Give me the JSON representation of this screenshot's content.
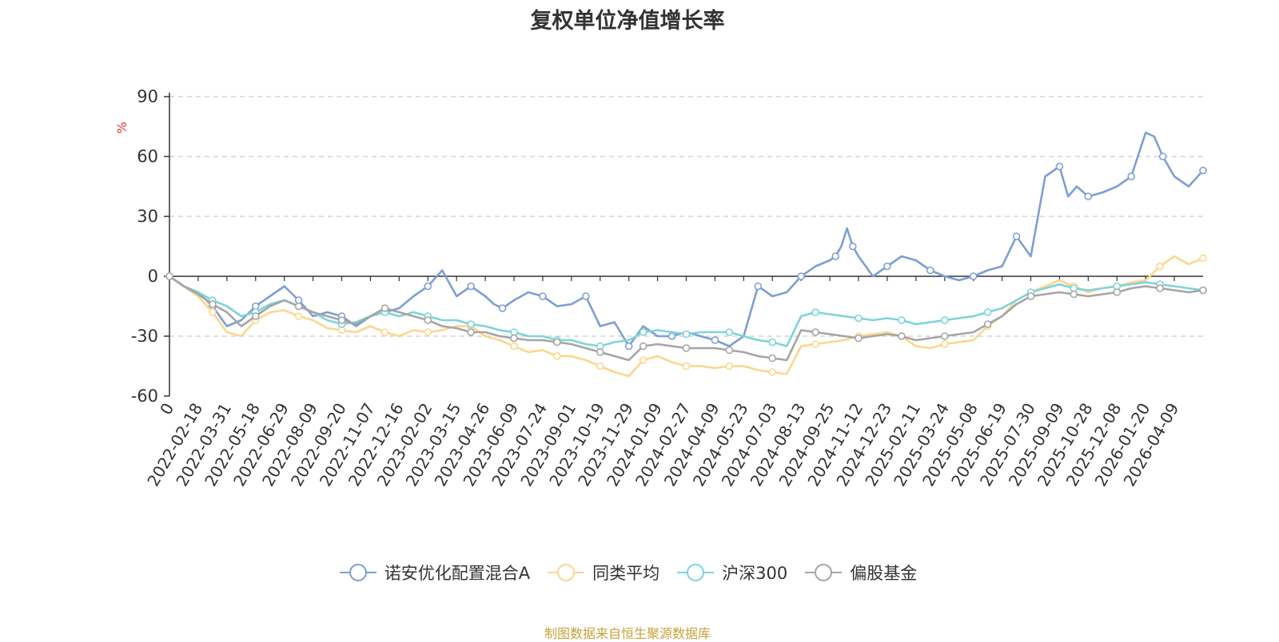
{
  "chart_data": {
    "type": "line",
    "title": "复权单位净值增长率",
    "ylabel": "%",
    "ylim": [
      -60,
      90
    ],
    "yticks": [
      -60,
      -30,
      0,
      30,
      60,
      90
    ],
    "grid": true,
    "legend_position": "bottom",
    "x_tick_labels": [
      "0",
      "2022-02-18",
      "2022-03-31",
      "2022-05-18",
      "2022-06-29",
      "2022-08-09",
      "2022-09-20",
      "2022-11-07",
      "2022-12-16",
      "2023-02-02",
      "2023-03-15",
      "2023-04-26",
      "2023-06-09",
      "2023-07-24",
      "2023-09-01",
      "2023-10-19",
      "2023-11-29",
      "2024-01-09",
      "2024-02-27",
      "2024-04-09",
      "2024-05-23",
      "2024-07-03",
      "2024-08-13",
      "2024-09-25",
      "2024-11-12",
      "2024-12-23",
      "2025-02-11",
      "2025-03-24",
      "2025-05-08",
      "2025-06-19",
      "2025-07-30",
      "2025-09-09",
      "2025-10-28",
      "2025-12-08",
      "2026-01-20",
      "2026-04-09"
    ],
    "x_index_range": [
      0,
      36
    ],
    "series": [
      {
        "name": "诺安优化配置混合A",
        "color": "#7d9fd3",
        "x": [
          0,
          0.5,
          1,
          1.5,
          2,
          2.5,
          3,
          3.5,
          4,
          4.5,
          5,
          5.5,
          6,
          6.5,
          7,
          7.5,
          8,
          8.5,
          9,
          9.5,
          10,
          10.5,
          11,
          11.3,
          11.6,
          12,
          12.5,
          13,
          13.5,
          14,
          14.5,
          15,
          15.5,
          16,
          16.5,
          17,
          17.5,
          18,
          18.5,
          19,
          19.5,
          20,
          20.5,
          21,
          21.5,
          22,
          22.5,
          23,
          23.2,
          23.4,
          23.6,
          23.8,
          24,
          24.5,
          25,
          25.5,
          26,
          26.5,
          27,
          27.5,
          28,
          28.5,
          29,
          29.5,
          30,
          30.5,
          31,
          31.3,
          31.6,
          32,
          32.5,
          33,
          33.5,
          34,
          34.3,
          34.6,
          35,
          35.5,
          36
        ],
        "values": [
          0,
          -5,
          -8,
          -15,
          -25,
          -22,
          -15,
          -10,
          -5,
          -12,
          -20,
          -18,
          -20,
          -25,
          -20,
          -18,
          -16,
          -10,
          -5,
          3,
          -10,
          -5,
          -10,
          -14,
          -16,
          -12,
          -8,
          -10,
          -15,
          -14,
          -10,
          -25,
          -23,
          -35,
          -25,
          -30,
          -30,
          -28,
          -30,
          -32,
          -35,
          -30,
          -5,
          -10,
          -8,
          0,
          5,
          8,
          10,
          15,
          24,
          15,
          10,
          0,
          5,
          10,
          8,
          3,
          0,
          -2,
          0,
          3,
          5,
          20,
          10,
          50,
          55,
          40,
          45,
          40,
          42,
          45,
          50,
          72,
          70,
          60,
          50,
          45,
          53
        ]
      },
      {
        "name": "同类平均",
        "color": "#fcd68e",
        "x": [
          0,
          0.5,
          1,
          1.5,
          2,
          2.5,
          3,
          3.5,
          4,
          4.5,
          5,
          5.5,
          6,
          6.5,
          7,
          7.5,
          8,
          8.5,
          9,
          9.5,
          10,
          10.5,
          11,
          11.5,
          12,
          12.5,
          13,
          13.5,
          14,
          14.5,
          15,
          15.5,
          16,
          16.5,
          17,
          17.5,
          18,
          18.5,
          19,
          19.5,
          20,
          20.5,
          21,
          21.5,
          22,
          22.5,
          23,
          23.5,
          24,
          24.5,
          25,
          25.5,
          26,
          26.5,
          27,
          27.5,
          28,
          28.5,
          29,
          29.5,
          30,
          30.5,
          31,
          31.5,
          32,
          32.5,
          33,
          33.5,
          34,
          34.5,
          35,
          35.5,
          36
        ],
        "values": [
          0,
          -5,
          -10,
          -18,
          -28,
          -30,
          -22,
          -18,
          -17,
          -20,
          -22,
          -26,
          -27,
          -28,
          -25,
          -28,
          -30,
          -27,
          -28,
          -27,
          -25,
          -25,
          -30,
          -32,
          -35,
          -38,
          -37,
          -40,
          -40,
          -42,
          -45,
          -48,
          -50,
          -42,
          -40,
          -43,
          -45,
          -45,
          -46,
          -45,
          -45,
          -47,
          -48,
          -49,
          -35,
          -34,
          -33,
          -32,
          -30,
          -29,
          -28,
          -30,
          -35,
          -36,
          -34,
          -33,
          -32,
          -25,
          -20,
          -12,
          -8,
          -5,
          -2,
          -5,
          -8,
          -6,
          -5,
          -3,
          -2,
          5,
          10,
          6,
          9
        ]
      },
      {
        "name": "沪深300",
        "color": "#7dd4d8",
        "x": [
          0,
          0.5,
          1,
          1.5,
          2,
          2.5,
          3,
          3.5,
          4,
          4.5,
          5,
          5.5,
          6,
          6.5,
          7,
          7.5,
          8,
          8.5,
          9,
          9.5,
          10,
          10.5,
          11,
          11.5,
          12,
          12.5,
          13,
          13.5,
          14,
          14.5,
          15,
          15.5,
          16,
          16.5,
          17,
          17.5,
          18,
          18.5,
          19,
          19.5,
          20,
          20.5,
          21,
          21.5,
          22,
          22.5,
          23,
          23.5,
          24,
          24.5,
          25,
          25.5,
          26,
          26.5,
          27,
          27.5,
          28,
          28.5,
          29,
          29.5,
          30,
          30.5,
          31,
          31.5,
          32,
          32.5,
          33,
          33.5,
          34,
          34.5,
          35,
          35.5,
          36
        ],
        "values": [
          0,
          -5,
          -8,
          -12,
          -15,
          -20,
          -18,
          -14,
          -12,
          -15,
          -18,
          -22,
          -24,
          -23,
          -20,
          -18,
          -20,
          -18,
          -20,
          -22,
          -22,
          -24,
          -25,
          -27,
          -28,
          -30,
          -30,
          -32,
          -32,
          -34,
          -35,
          -33,
          -32,
          -28,
          -27,
          -28,
          -29,
          -28,
          -28,
          -28,
          -30,
          -32,
          -33,
          -35,
          -20,
          -18,
          -19,
          -20,
          -21,
          -22,
          -21,
          -22,
          -24,
          -23,
          -22,
          -21,
          -20,
          -18,
          -16,
          -12,
          -8,
          -6,
          -4,
          -6,
          -7,
          -6,
          -5,
          -4,
          -3,
          -4,
          -5,
          -6,
          -7
        ]
      },
      {
        "name": "偏股基金",
        "color": "#a5a5a5",
        "x": [
          0,
          0.5,
          1,
          1.5,
          2,
          2.5,
          3,
          3.5,
          4,
          4.5,
          5,
          5.5,
          6,
          6.5,
          7,
          7.5,
          8,
          8.5,
          9,
          9.5,
          10,
          10.5,
          11,
          11.5,
          12,
          12.5,
          13,
          13.5,
          14,
          14.5,
          15,
          15.5,
          16,
          16.5,
          17,
          17.5,
          18,
          18.5,
          19,
          19.5,
          20,
          20.5,
          21,
          21.5,
          22,
          22.5,
          23,
          23.5,
          24,
          24.5,
          25,
          25.5,
          26,
          26.5,
          27,
          27.5,
          28,
          28.5,
          29,
          29.5,
          30,
          30.5,
          31,
          31.5,
          32,
          32.5,
          33,
          33.5,
          34,
          34.5,
          35,
          35.5,
          36
        ],
        "values": [
          0,
          -5,
          -9,
          -14,
          -18,
          -25,
          -20,
          -15,
          -12,
          -15,
          -18,
          -20,
          -22,
          -24,
          -20,
          -16,
          -18,
          -20,
          -22,
          -25,
          -26,
          -28,
          -28,
          -30,
          -31,
          -32,
          -32,
          -33,
          -34,
          -36,
          -38,
          -40,
          -42,
          -35,
          -34,
          -35,
          -36,
          -36,
          -36,
          -37,
          -38,
          -40,
          -41,
          -42,
          -27,
          -28,
          -29,
          -30,
          -31,
          -30,
          -29,
          -30,
          -32,
          -31,
          -30,
          -29,
          -28,
          -24,
          -20,
          -14,
          -10,
          -9,
          -8,
          -9,
          -10,
          -9,
          -8,
          -6,
          -5,
          -6,
          -7,
          -8,
          -7
        ]
      }
    ]
  },
  "source": "制图数据来自恒生聚源数据库"
}
